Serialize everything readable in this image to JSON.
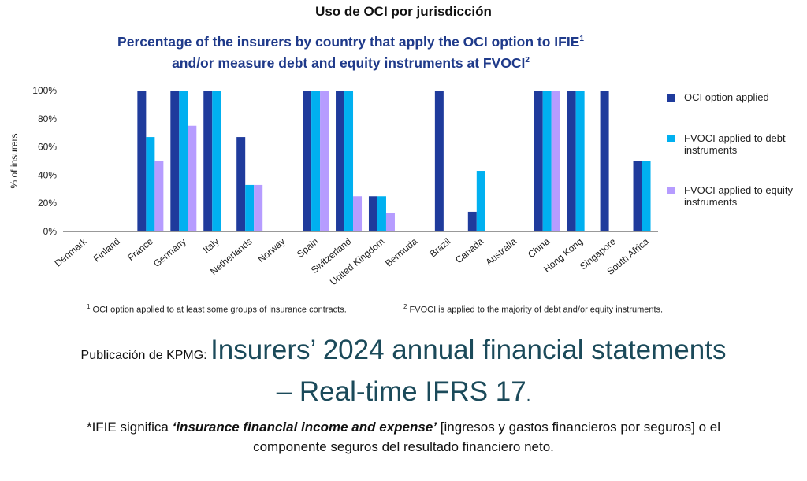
{
  "heading": "Uso de OCI por jurisdicción",
  "chart_data": {
    "type": "bar",
    "title_line1": "Percentage of the insurers by country that apply the OCI option to IFIE",
    "title_sup1": "1",
    "title_line2": "and/or measure debt and equity instruments at FVOCI",
    "title_sup2": "2",
    "ylabel": "% of insurers",
    "ylim": [
      0,
      100
    ],
    "yticks": [
      "0%",
      "20%",
      "40%",
      "60%",
      "80%",
      "100%"
    ],
    "categories": [
      "Denmark",
      "Finland",
      "France",
      "Germany",
      "Italy",
      "Netherlands",
      "Norway",
      "Spain",
      "Switzerland",
      "United Kingdom",
      "Bermuda",
      "Brazil",
      "Canada",
      "Australia",
      "China",
      "Hong Kong",
      "Singapore",
      "South Africa"
    ],
    "series": [
      {
        "name": "OCI option applied",
        "color": "#1f3b9c",
        "values": [
          0,
          0,
          100,
          100,
          100,
          67,
          0,
          100,
          100,
          25,
          0,
          100,
          14,
          0,
          100,
          100,
          100,
          50
        ]
      },
      {
        "name": "FVOCI applied to debt instruments",
        "color": "#00b0f0",
        "values": [
          0,
          0,
          67,
          100,
          100,
          33,
          0,
          100,
          100,
          25,
          0,
          0,
          43,
          0,
          100,
          100,
          0,
          50
        ]
      },
      {
        "name": "FVOCI applied to equity instruments",
        "color": "#b69cff",
        "values": [
          0,
          0,
          50,
          75,
          0,
          33,
          0,
          100,
          25,
          13,
          0,
          0,
          0,
          0,
          100,
          0,
          0,
          0
        ]
      }
    ],
    "legend_position": "right",
    "grid": false
  },
  "legend": [
    {
      "label": "OCI option applied"
    },
    {
      "label": "FVOCI applied to debt instruments"
    },
    {
      "label": "FVOCI applied to equity instruments"
    }
  ],
  "footnotes": {
    "note1_num": "1",
    "note1": "OCI option applied to at least some groups of insurance contracts.",
    "note2_num": "2",
    "note2": "FVOCI is applied to the majority of debt and/or equity instruments."
  },
  "publication": {
    "label": "Publicación de KPMG: ",
    "title_line1": "Insurers’ 2024 annual financial statements",
    "title_line2": "– Real-time IFRS 17",
    "title_end": "."
  },
  "note": {
    "prefix": "*IFIE significa ",
    "term": "‘insurance financial income and expense’",
    "line1_rest": " [ingresos y gastos financieros por seguros] o el",
    "line2": "componente seguros del resultado financiero neto."
  }
}
